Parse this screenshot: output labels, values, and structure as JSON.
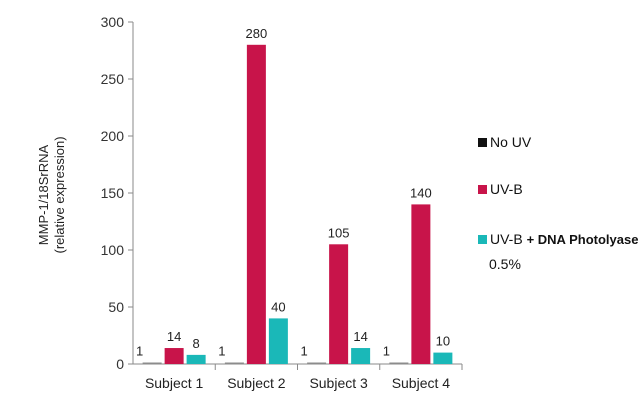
{
  "chart_data": {
    "type": "bar",
    "categories": [
      "Subject 1",
      "Subject 2",
      "Subject 3",
      "Subject 4"
    ],
    "series": [
      {
        "name": "No UV",
        "values": [
          1,
          1,
          1,
          1
        ],
        "color": "#8c8c8c"
      },
      {
        "name": "UV-B",
        "values": [
          14,
          280,
          105,
          140
        ],
        "color": "#c8144a"
      },
      {
        "name": "UV-B + DNA Photolyase 0.5%",
        "values": [
          8,
          40,
          14,
          10
        ],
        "color": "#1ab8b8"
      }
    ],
    "legend": {
      "items": [
        {
          "prefix": "",
          "main": "No UV",
          "sub": "",
          "swatch_color": "#111111"
        },
        {
          "prefix": "",
          "main": "UV-B",
          "sub": "",
          "swatch_color": "#c8144a"
        },
        {
          "prefix": "UV-B",
          "main": "+ DNA Photolyase",
          "sub": "0.5%",
          "swatch_color": "#1ab8b8"
        }
      ],
      "position": "right"
    },
    "ylabel_line1": "MMP-1/18SrRNA",
    "ylabel_line2": "(relative expression)",
    "ylim": [
      0,
      300
    ],
    "yticks": [
      0,
      50,
      100,
      150,
      200,
      250,
      300
    ],
    "grid": false,
    "data_labels": true
  }
}
